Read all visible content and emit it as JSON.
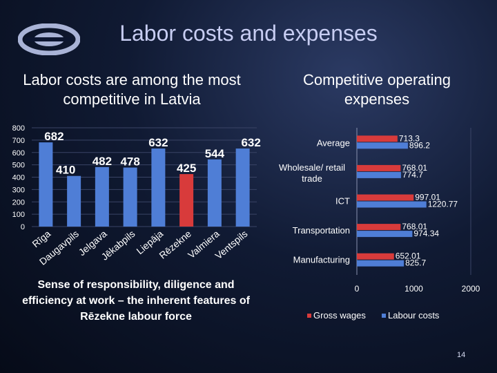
{
  "title": "Labor costs and expenses",
  "left_subtitle": "Labor costs are among the most competitive in Latvia",
  "right_subtitle": "Competitive operating expenses",
  "caption": "Sense of responsibility, diligence and efficiency at work – the inherent features of Rēzekne labour force",
  "page_number": "14",
  "colors": {
    "bar_blue": "#4f7ed6",
    "bar_red": "#d83b3b",
    "background": "#0b1226"
  },
  "chart_data": [
    {
      "type": "bar",
      "title": "",
      "categories": [
        "Rīga",
        "Daugavpils",
        "Jelgava",
        "Jēkabpils",
        "Liepāja",
        "Rēzekne",
        "Valmiera",
        "Ventspils"
      ],
      "values": [
        682,
        410,
        482,
        478,
        632,
        425,
        544,
        632
      ],
      "value_labels": [
        "682",
        "410",
        "482",
        "478",
        "632",
        "425",
        "544",
        "632"
      ],
      "highlight": "Rēzekne",
      "ylim": [
        0,
        800
      ],
      "yticks": [
        "0",
        "100",
        "200",
        "300",
        "400",
        "500",
        "600",
        "700",
        "800"
      ],
      "xlabel": "",
      "ylabel": ""
    },
    {
      "type": "bar",
      "orientation": "horizontal",
      "categories": [
        "Average",
        "Wholesale/ retail trade",
        "ICT",
        "Transportation",
        "Manufacturing"
      ],
      "series": [
        {
          "name": "Gross wages",
          "values": [
            713.3,
            768.01,
            997.01,
            768.01,
            652.01
          ],
          "labels": [
            "713.3",
            "768.01",
            "997.01",
            "768.01",
            "652.01"
          ]
        },
        {
          "name": "Labour costs",
          "values": [
            896.2,
            774.7,
            1220.77,
            974.34,
            825.7
          ],
          "labels": [
            "896.2",
            "774.7",
            "1220.77",
            "974.34",
            "825.7"
          ]
        }
      ],
      "xlim": [
        0,
        2000
      ],
      "xticks": [
        "0",
        "1000",
        "2000"
      ],
      "legend": "bottom"
    }
  ]
}
